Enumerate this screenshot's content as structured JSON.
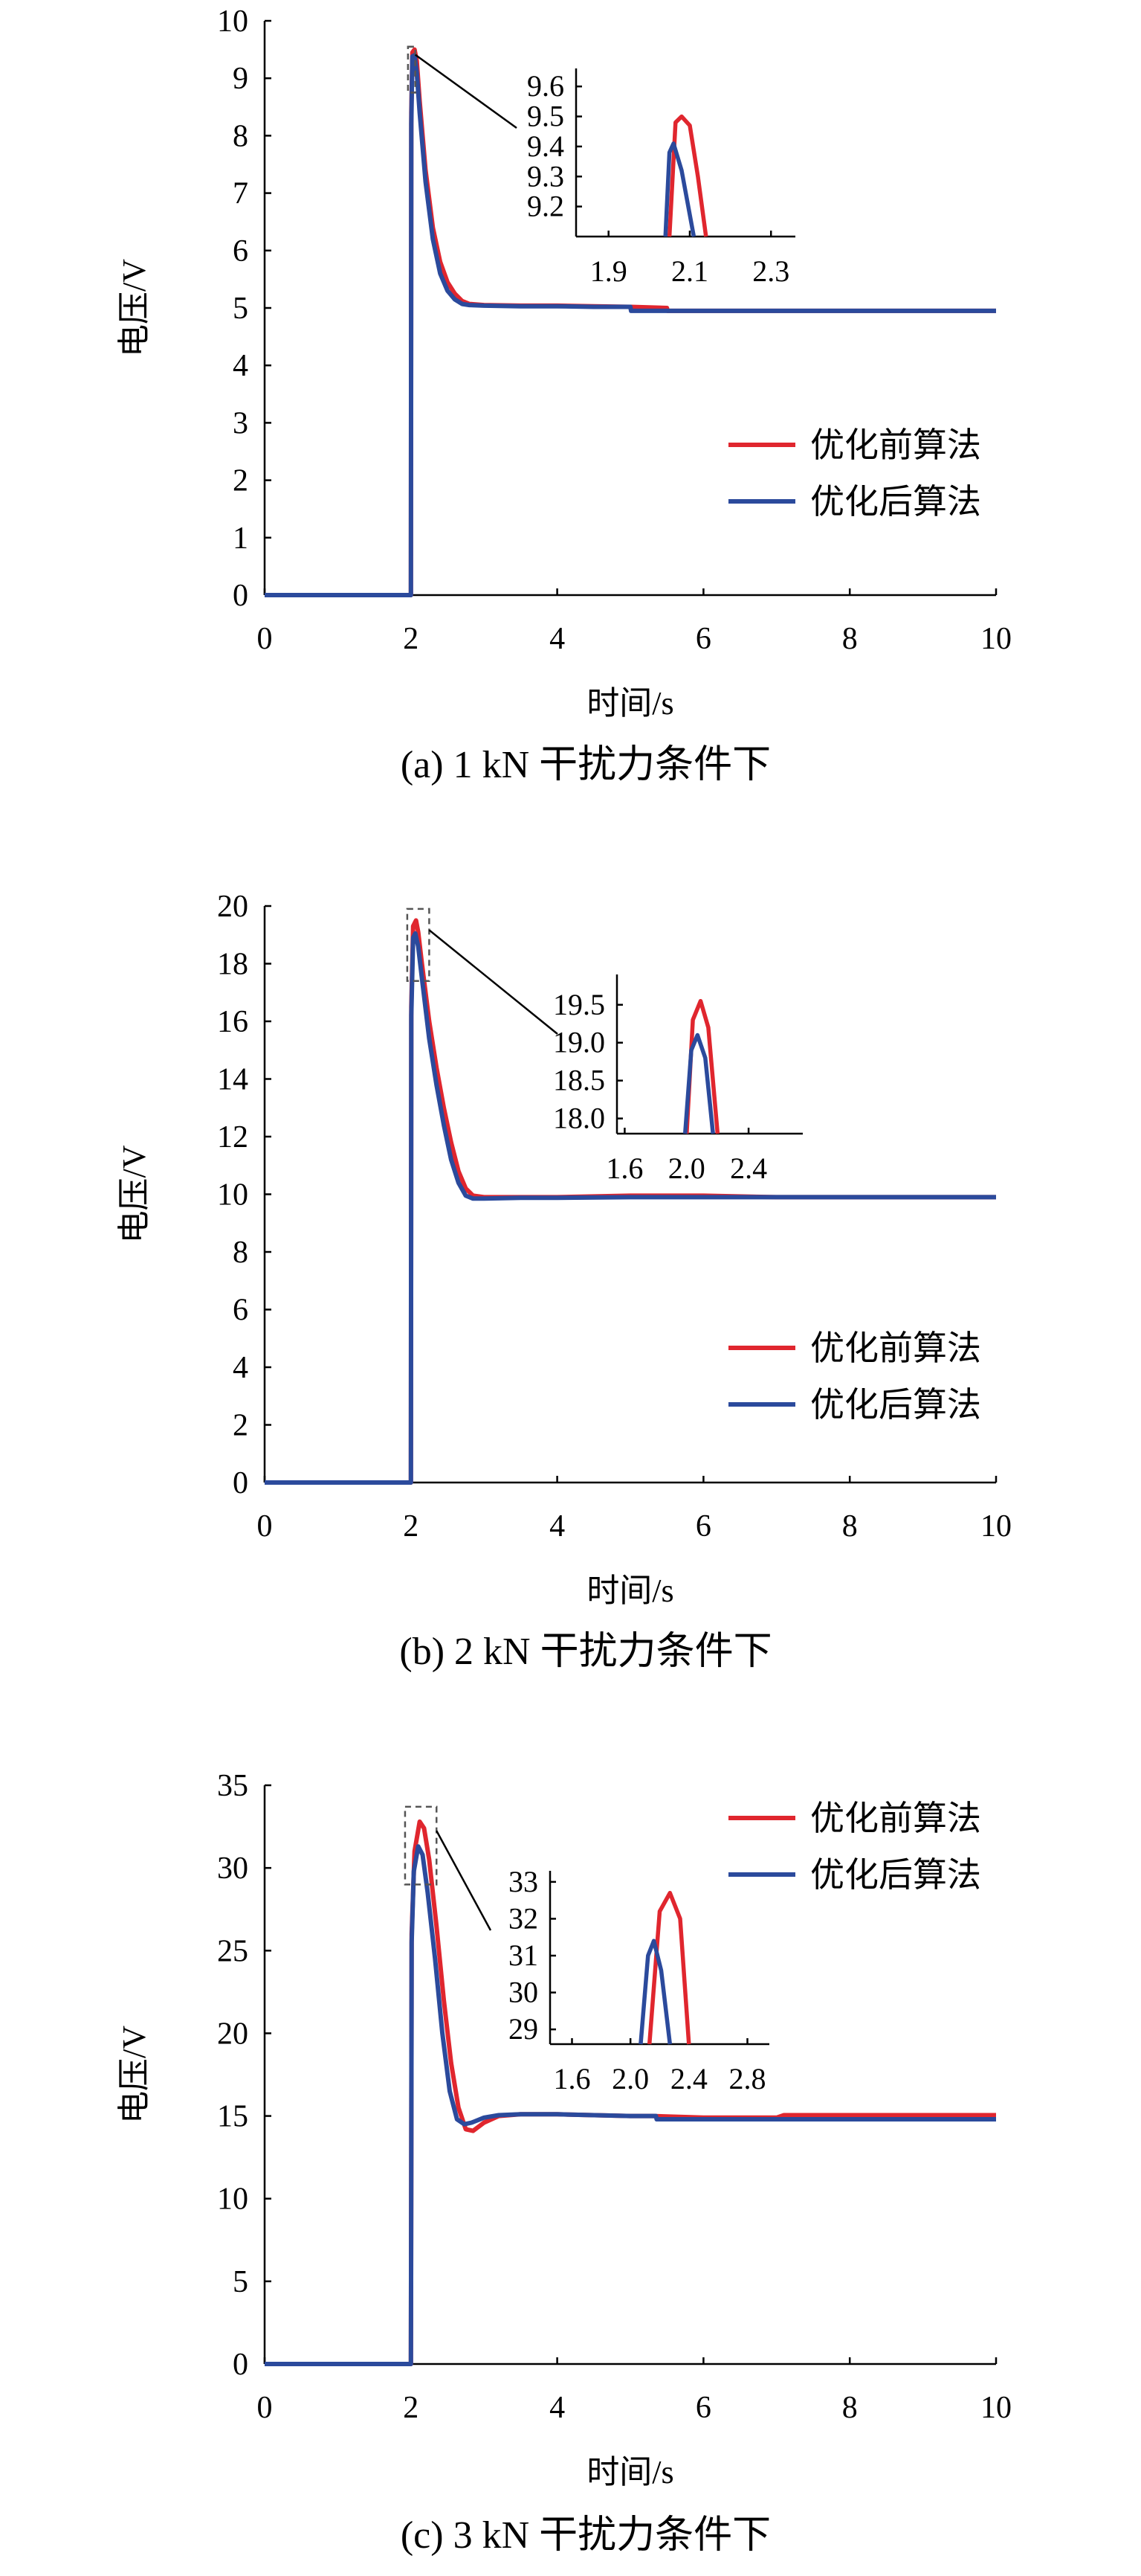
{
  "colors": {
    "before": "#e0262e",
    "after": "#2b4a9c"
  },
  "chart_data": [
    {
      "type": "line",
      "caption": "(a) 1 kN 干扰力条件下",
      "xlabel": "时间/s",
      "ylabel": "电压/V",
      "xlim": [
        0,
        10
      ],
      "ylim": [
        0,
        10
      ],
      "xticks": [
        0,
        2,
        4,
        6,
        8,
        10
      ],
      "yticks": [
        0,
        1,
        2,
        3,
        4,
        5,
        6,
        7,
        8,
        9,
        10
      ],
      "legend_position": "center-right",
      "series": [
        {
          "name": "优化前算法",
          "color": "#e0262e",
          "x": [
            0,
            2.0,
            2.005,
            2.02,
            2.05,
            2.08,
            2.12,
            2.2,
            2.3,
            2.4,
            2.5,
            2.6,
            2.7,
            2.8,
            3.0,
            3.5,
            4.0,
            4.5,
            5.0,
            5.5,
            5.51,
            6.0,
            7.0,
            8.0,
            9.0,
            10.0
          ],
          "y": [
            0,
            0,
            8.4,
            9.45,
            9.5,
            9.3,
            8.6,
            7.4,
            6.4,
            5.8,
            5.45,
            5.25,
            5.12,
            5.07,
            5.05,
            5.04,
            5.04,
            5.03,
            5.02,
            5.0,
            4.95,
            4.95,
            4.95,
            4.95,
            4.95,
            4.95
          ]
        },
        {
          "name": "优化后算法",
          "color": "#2b4a9c",
          "x": [
            0,
            2.0,
            2.005,
            2.02,
            2.05,
            2.08,
            2.12,
            2.2,
            2.3,
            2.4,
            2.5,
            2.6,
            2.7,
            2.8,
            3.0,
            3.5,
            4.0,
            4.5,
            5.0,
            5.01,
            5.5,
            6.0,
            7.0,
            8.0,
            9.0,
            10.0
          ],
          "y": [
            0,
            0,
            8.2,
            9.38,
            9.4,
            9.1,
            8.4,
            7.2,
            6.2,
            5.6,
            5.3,
            5.15,
            5.07,
            5.05,
            5.04,
            5.03,
            5.03,
            5.02,
            5.02,
            4.95,
            4.95,
            4.95,
            4.95,
            4.95,
            4.95,
            4.95
          ]
        }
      ],
      "inset": {
        "xlim": [
          1.82,
          2.36
        ],
        "ylim": [
          9.1,
          9.66
        ],
        "xticks": [
          "1.9",
          "2.1",
          "2.3"
        ],
        "yticks": [
          "9.2",
          "9.3",
          "9.4",
          "9.5",
          "9.6"
        ],
        "zoom_box": {
          "x": [
            1.96,
            2.06
          ],
          "y": [
            8.75,
            9.55
          ]
        },
        "series": [
          {
            "name": "优化前算法",
            "x": [
              2.05,
              2.065,
              2.08,
              2.1,
              2.12,
              2.14
            ],
            "y": [
              9.1,
              9.48,
              9.5,
              9.47,
              9.3,
              9.1
            ]
          },
          {
            "name": "优化后算法",
            "x": [
              2.04,
              2.05,
              2.06,
              2.08,
              2.11
            ],
            "y": [
              9.1,
              9.38,
              9.41,
              9.32,
              9.1
            ]
          }
        ]
      }
    },
    {
      "type": "line",
      "caption": "(b) 2 kN 干扰力条件下",
      "xlabel": "时间/s",
      "ylabel": "电压/V",
      "xlim": [
        0,
        10
      ],
      "ylim": [
        0,
        20
      ],
      "xticks": [
        0,
        2,
        4,
        6,
        8,
        10
      ],
      "yticks": [
        0,
        2,
        4,
        6,
        8,
        10,
        12,
        14,
        16,
        18,
        20
      ],
      "legend_position": "center-right",
      "series": [
        {
          "name": "优化前算法",
          "color": "#e0262e",
          "x": [
            0,
            2.0,
            2.005,
            2.03,
            2.07,
            2.1,
            2.15,
            2.25,
            2.35,
            2.45,
            2.55,
            2.65,
            2.75,
            2.85,
            3.0,
            3.5,
            4.0,
            5.0,
            6.0,
            7.0,
            8.0,
            9.0,
            10.0
          ],
          "y": [
            0,
            0,
            16.5,
            19.3,
            19.5,
            19.1,
            18.0,
            16.0,
            14.4,
            13.0,
            11.8,
            10.8,
            10.2,
            9.95,
            9.9,
            9.9,
            9.9,
            9.95,
            9.95,
            9.9,
            9.9,
            9.9,
            9.9
          ]
        },
        {
          "name": "优化后算法",
          "color": "#2b4a9c",
          "x": [
            0,
            2.0,
            2.005,
            2.03,
            2.06,
            2.1,
            2.15,
            2.25,
            2.35,
            2.45,
            2.55,
            2.65,
            2.75,
            2.85,
            3.0,
            3.5,
            4.0,
            5.0,
            6.0,
            7.0,
            8.0,
            9.0,
            10.0
          ],
          "y": [
            0,
            0,
            16.2,
            18.9,
            19.05,
            18.6,
            17.5,
            15.4,
            13.8,
            12.4,
            11.2,
            10.4,
            9.95,
            9.85,
            9.85,
            9.88,
            9.88,
            9.9,
            9.9,
            9.9,
            9.9,
            9.9,
            9.9
          ]
        }
      ],
      "inset": {
        "xlim": [
          1.55,
          2.75
        ],
        "ylim": [
          17.8,
          19.9
        ],
        "xticks": [
          "1.6",
          "2.0",
          "2.4"
        ],
        "yticks": [
          "18.0",
          "18.5",
          "19.0",
          "19.5"
        ],
        "zoom_box": {
          "x": [
            1.95,
            2.25
          ],
          "y": [
            17.4,
            19.9
          ]
        },
        "series": [
          {
            "name": "优化前算法",
            "x": [
              2.0,
              2.04,
              2.09,
              2.14,
              2.2
            ],
            "y": [
              17.8,
              19.3,
              19.55,
              19.2,
              17.8
            ]
          },
          {
            "name": "优化后算法",
            "x": [
              1.99,
              2.03,
              2.07,
              2.12,
              2.17
            ],
            "y": [
              17.8,
              18.9,
              19.1,
              18.8,
              17.8
            ]
          }
        ]
      }
    },
    {
      "type": "line",
      "caption": "(c) 3 kN 干扰力条件下",
      "xlabel": "时间/s",
      "ylabel": "电压/V",
      "xlim": [
        0,
        10
      ],
      "ylim": [
        0,
        35
      ],
      "xticks": [
        0,
        2,
        4,
        6,
        8,
        10
      ],
      "yticks": [
        0,
        5,
        10,
        15,
        20,
        25,
        30,
        35
      ],
      "legend_position": "top-right",
      "series": [
        {
          "name": "优化前算法",
          "color": "#e0262e",
          "x": [
            0,
            2.0,
            2.01,
            2.05,
            2.12,
            2.18,
            2.25,
            2.35,
            2.45,
            2.55,
            2.65,
            2.75,
            2.85,
            3.0,
            3.2,
            3.5,
            4.0,
            5.0,
            5.3,
            6.0,
            7.0,
            7.1,
            8.0,
            9.0,
            10.0
          ],
          "y": [
            0,
            0,
            26.0,
            31.0,
            32.8,
            32.4,
            30.5,
            26.5,
            22.0,
            18.2,
            15.5,
            14.2,
            14.1,
            14.6,
            15.0,
            15.1,
            15.1,
            15.0,
            15.0,
            14.9,
            14.9,
            15.05,
            15.05,
            15.05,
            15.05
          ]
        },
        {
          "name": "优化后算法",
          "color": "#2b4a9c",
          "x": [
            0,
            2.0,
            2.01,
            2.04,
            2.1,
            2.16,
            2.23,
            2.33,
            2.43,
            2.53,
            2.63,
            2.73,
            2.83,
            3.0,
            3.2,
            3.5,
            4.0,
            5.0,
            5.35,
            5.36,
            6.0,
            7.0,
            8.0,
            9.0,
            10.0
          ],
          "y": [
            0,
            0,
            25.5,
            29.8,
            31.3,
            30.8,
            28.5,
            24.5,
            20.0,
            16.5,
            14.8,
            14.5,
            14.6,
            14.9,
            15.05,
            15.1,
            15.1,
            15.0,
            15.0,
            14.8,
            14.8,
            14.8,
            14.8,
            14.8,
            14.8
          ]
        }
      ],
      "inset": {
        "xlim": [
          1.45,
          2.95
        ],
        "ylim": [
          28.6,
          33.3
        ],
        "xticks": [
          "1.6",
          "2.0",
          "2.4",
          "2.8"
        ],
        "yticks": [
          "29",
          "30",
          "31",
          "32",
          "33"
        ],
        "zoom_box": {
          "x": [
            1.92,
            2.35
          ],
          "y": [
            29.0,
            33.7
          ]
        },
        "series": [
          {
            "name": "优化前算法",
            "x": [
              2.13,
              2.2,
              2.27,
              2.34,
              2.4
            ],
            "y": [
              28.6,
              32.2,
              32.7,
              32.0,
              28.6
            ]
          },
          {
            "name": "优化后算法",
            "x": [
              2.07,
              2.12,
              2.16,
              2.21,
              2.27
            ],
            "y": [
              28.6,
              31.0,
              31.4,
              30.6,
              28.6
            ]
          }
        ]
      }
    }
  ]
}
